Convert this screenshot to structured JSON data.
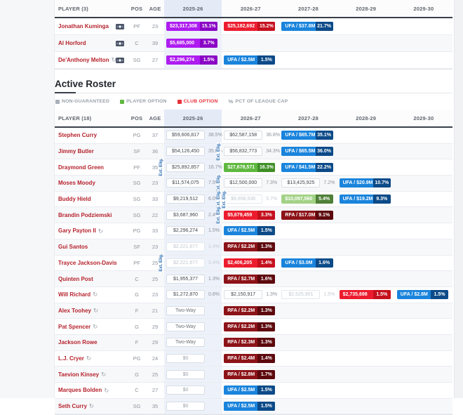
{
  "colors": {
    "purple": "#ae1cf0",
    "purple_dark": "#8a06c6",
    "red": "#ec1c2e",
    "red_dark": "#c5101e",
    "blue": "#1a84dc",
    "blue_dark": "#0c4a88",
    "darkred": "#8c1318",
    "darkred_dark": "#5d090d",
    "green": "#5fb83f",
    "green_dark": "#3f8f27",
    "lightgreen": "#a3d287",
    "lightgreen_dark": "#4f8038",
    "column_highlight": "#edf1f9",
    "name_link": "#b5232d",
    "ext_label_color": "#2a6db3"
  },
  "ext_label": "Ext. Elig.",
  "top_table": {
    "header": {
      "player": "PLAYER (3)",
      "pos": "POS",
      "age": "AGE",
      "years": [
        "2025-26",
        "2026-27",
        "2027-28",
        "2028-29",
        "2029-30"
      ]
    },
    "rows": [
      {
        "name": "Jonathan Kuminga",
        "status_icon": false,
        "money_icon": true,
        "pos": "PF",
        "age": "23",
        "cells": [
          {
            "t": "badge",
            "s": "purple",
            "v": "$23,317,308",
            "p": "15.1%"
          },
          {
            "t": "badge",
            "s": "red",
            "v": "$25,182,692",
            "p": "15.2%"
          },
          {
            "t": "badge",
            "s": "blue",
            "v": "UFA / $37.8M",
            "p": "21.7%"
          },
          null,
          null
        ]
      },
      {
        "name": "Al Horford",
        "status_icon": false,
        "money_icon": true,
        "pos": "C",
        "age": "39",
        "cells": [
          {
            "t": "badge",
            "s": "purple",
            "v": "$5,685,000",
            "p": "3.7%"
          },
          null,
          null,
          null,
          null
        ]
      },
      {
        "name": "De'Anthony Melton",
        "status_icon": true,
        "money_icon": true,
        "pos": "SG",
        "age": "27",
        "cells": [
          {
            "t": "badge",
            "s": "purple",
            "v": "$2,296,274",
            "p": "1.5%"
          },
          {
            "t": "badge",
            "s": "blue",
            "v": "UFA / $2.5M",
            "p": "1.5%"
          },
          null,
          null,
          null
        ]
      }
    ]
  },
  "section": {
    "title": "Active Roster"
  },
  "legend": {
    "items": [
      {
        "key": "non-guaranteed",
        "label": "NON-GUARANTEED",
        "swatch": "#a9b0ba",
        "label_color": "#98a0a8"
      },
      {
        "key": "player-option",
        "label": "PLAYER OPTION",
        "swatch": "#5fb83f",
        "label_color": "#98a0a8"
      },
      {
        "key": "club-option",
        "label": "CLUB OPTION",
        "swatch": "#e8313a",
        "label_color": "#e8313a"
      },
      {
        "key": "pct-of-league-cap",
        "label": "PCT OF LEAGUE CAP",
        "swatch_text": "%",
        "label_color": "#98a0a8"
      }
    ]
  },
  "roster_table": {
    "header": {
      "player": "PLAYER (18)",
      "pos": "POS",
      "age": "AGE",
      "years": [
        "2025-26",
        "2026-27",
        "2027-28",
        "2028-29",
        "2029-30"
      ]
    },
    "rows": [
      {
        "name": "Stephen Curry",
        "status_icon": false,
        "money_icon": false,
        "pos": "PG",
        "age": "37",
        "cells": [
          {
            "t": "plain",
            "v": "$59,606,817",
            "p": "38.5%"
          },
          {
            "t": "plain",
            "v": "$62,587,158",
            "p": "36.8%"
          },
          {
            "t": "badge",
            "s": "blue",
            "v": "UFA / $65.7M",
            "p": "35.1%"
          },
          null,
          null
        ]
      },
      {
        "name": "Jimmy Butler",
        "status_icon": false,
        "money_icon": false,
        "pos": "SF",
        "age": "36",
        "cells": [
          {
            "t": "plain",
            "v": "$54,126,450",
            "p": "35.0%"
          },
          {
            "t": "plain",
            "v": "$56,832,773",
            "p": "34.3%",
            "ext": 1
          },
          {
            "t": "badge",
            "s": "blue",
            "v": "UFA / $65.5M",
            "p": "36.0%"
          },
          null,
          null
        ]
      },
      {
        "name": "Draymond Green",
        "status_icon": false,
        "money_icon": false,
        "pos": "PF",
        "age": "35",
        "cells": [
          {
            "t": "plain",
            "v": "$25,892,857",
            "p": "16.7%",
            "ext": 1
          },
          {
            "t": "badge",
            "s": "green",
            "v": "$27,678,571",
            "p": "16.3%"
          },
          {
            "t": "badge",
            "s": "blue",
            "v": "UFA / $41.5M",
            "p": "22.2%"
          },
          null,
          null
        ]
      },
      {
        "name": "Moses Moody",
        "status_icon": false,
        "money_icon": false,
        "pos": "SG",
        "age": "23",
        "cells": [
          {
            "t": "plain",
            "v": "$11,574,075",
            "p": "7.5%"
          },
          {
            "t": "plain",
            "v": "$12,500,000",
            "p": "7.3%",
            "ext": 1
          },
          {
            "t": "plain",
            "v": "$13,425,925",
            "p": "7.2%"
          },
          {
            "t": "badge",
            "s": "blue",
            "v": "UFA / $20.9M",
            "p": "10.7%"
          },
          null
        ]
      },
      {
        "name": "Buddy Hield",
        "status_icon": false,
        "money_icon": false,
        "pos": "SG",
        "age": "33",
        "cells": [
          {
            "t": "plain",
            "v": "$9,219,512",
            "p": "6.0%"
          },
          {
            "t": "muted",
            "v": "$9,658,536",
            "p": "5.7%",
            "ext": 2
          },
          {
            "t": "badge",
            "s": "lightgreen",
            "v": "$10,097,560",
            "p": "5.4%"
          },
          {
            "t": "badge",
            "s": "blue",
            "v": "UFA / $19.2M",
            "p": "9.3%"
          },
          null
        ]
      },
      {
        "name": "Brandin Podziemski",
        "status_icon": false,
        "money_icon": false,
        "pos": "SG",
        "age": "22",
        "cells": [
          {
            "t": "plain",
            "v": "$3,687,960",
            "p": "2.4%"
          },
          {
            "t": "badge",
            "s": "red",
            "v": "$5,679,459",
            "p": "3.3%",
            "ext": 1
          },
          {
            "t": "badge",
            "s": "darkred",
            "v": "RFA / $17.0M",
            "p": "9.1%"
          },
          null,
          null
        ]
      },
      {
        "name": "Gary Payton II",
        "status_icon": true,
        "money_icon": false,
        "pos": "PG",
        "age": "33",
        "cells": [
          {
            "t": "plain",
            "v": "$2,296,274",
            "p": "1.5%"
          },
          {
            "t": "badge",
            "s": "blue",
            "v": "UFA / $2.5M",
            "p": "1.5%"
          },
          null,
          null,
          null
        ]
      },
      {
        "name": "Gui Santos",
        "status_icon": false,
        "money_icon": false,
        "pos": "SF",
        "age": "23",
        "cells": [
          {
            "t": "muted",
            "v": "$2,221,677",
            "p": "1.4%"
          },
          {
            "t": "badge",
            "s": "darkred",
            "v": "RFA / $2.2M",
            "p": "1.3%"
          },
          null,
          null,
          null
        ]
      },
      {
        "name": "Trayce Jackson-Davis",
        "status_icon": false,
        "money_icon": false,
        "pos": "PF",
        "age": "25",
        "cells": [
          {
            "t": "muted",
            "v": "$2,221,677",
            "p": "1.4%",
            "ext": 1
          },
          {
            "t": "badge",
            "s": "red",
            "v": "$2,406,205",
            "p": "1.4%"
          },
          {
            "t": "badge",
            "s": "blue",
            "v": "UFA / $3.0M",
            "p": "1.6%"
          },
          null,
          null
        ]
      },
      {
        "name": "Quinten Post",
        "status_icon": false,
        "money_icon": false,
        "pos": "C",
        "age": "25",
        "cells": [
          {
            "t": "plain",
            "v": "$1,955,377",
            "p": "1.3%"
          },
          {
            "t": "badge",
            "s": "darkred",
            "v": "RFA / $2.7M",
            "p": "1.6%"
          },
          null,
          null,
          null
        ]
      },
      {
        "name": "Will Richard",
        "status_icon": true,
        "money_icon": false,
        "pos": "G",
        "age": "23",
        "cells": [
          {
            "t": "plain",
            "v": "$1,272,870",
            "p": "0.8%"
          },
          {
            "t": "plain",
            "v": "$2,150,917",
            "p": "1.3%"
          },
          {
            "t": "muted",
            "v": "$2,525,901",
            "p": "1.5%"
          },
          {
            "t": "badge",
            "s": "red",
            "v": "$2,735,698",
            "p": "1.5%"
          },
          {
            "t": "badge",
            "s": "blue",
            "v": "UFA / $2.8M",
            "p": "1.5%"
          }
        ]
      },
      {
        "name": "Alex Toohey",
        "status_icon": true,
        "money_icon": false,
        "pos": "F",
        "age": "21",
        "cells": [
          {
            "t": "twoway",
            "v": "Two-Way"
          },
          {
            "t": "badge",
            "s": "darkred",
            "v": "RFA / $2.2M",
            "p": "1.3%"
          },
          null,
          null,
          null
        ]
      },
      {
        "name": "Pat Spencer",
        "status_icon": true,
        "money_icon": false,
        "pos": "G",
        "age": "29",
        "cells": [
          {
            "t": "twoway",
            "v": "Two-Way"
          },
          {
            "t": "badge",
            "s": "darkred",
            "v": "RFA / $2.2M",
            "p": "1.3%"
          },
          null,
          null,
          null
        ]
      },
      {
        "name": "Jackson Rowe",
        "status_icon": false,
        "money_icon": false,
        "pos": "F",
        "age": "29",
        "cells": [
          {
            "t": "twoway",
            "v": "Two-Way"
          },
          {
            "t": "badge",
            "s": "darkred",
            "v": "RFA / $2.3M",
            "p": "1.3%"
          },
          null,
          null,
          null
        ]
      },
      {
        "name": "L.J. Cryer",
        "status_icon": true,
        "money_icon": false,
        "pos": "PG",
        "age": "24",
        "cells": [
          {
            "t": "zero",
            "v": "$0"
          },
          {
            "t": "badge",
            "s": "darkred",
            "v": "RFA / $2.4M",
            "p": "1.4%"
          },
          null,
          null,
          null
        ]
      },
      {
        "name": "Taevion Kinsey",
        "status_icon": true,
        "money_icon": false,
        "pos": "G",
        "age": "25",
        "cells": [
          {
            "t": "zero",
            "v": "$0"
          },
          {
            "t": "badge",
            "s": "darkred",
            "v": "RFA / $2.8M",
            "p": "1.7%"
          },
          null,
          null,
          null
        ]
      },
      {
        "name": "Marques Bolden",
        "status_icon": true,
        "money_icon": false,
        "pos": "C",
        "age": "27",
        "cells": [
          {
            "t": "zero",
            "v": "$0"
          },
          {
            "t": "badge",
            "s": "blue",
            "v": "UFA / $2.5M",
            "p": "1.5%"
          },
          null,
          null,
          null
        ]
      },
      {
        "name": "Seth Curry",
        "status_icon": true,
        "money_icon": false,
        "pos": "SG",
        "age": "35",
        "cells": [
          {
            "t": "zero",
            "v": "$0"
          },
          {
            "t": "badge",
            "s": "blue",
            "v": "UFA / $2.5M",
            "p": "1.5%"
          },
          null,
          null,
          null
        ]
      }
    ]
  }
}
